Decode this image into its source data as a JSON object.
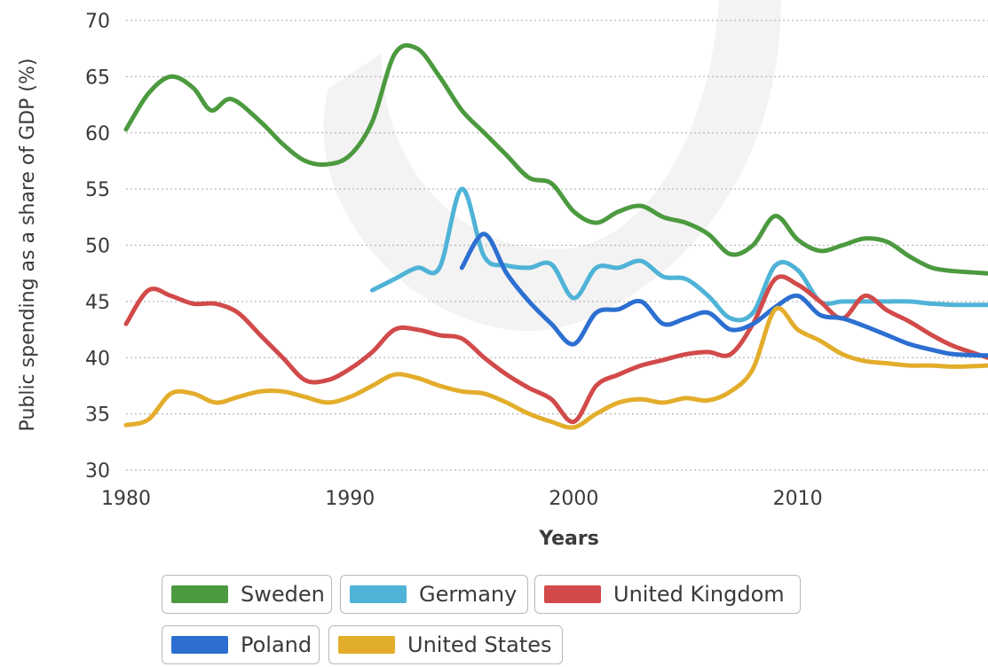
{
  "chart_data": {
    "type": "line",
    "xlabel": "Years",
    "ylabel": "Public spending as a share of GDP (%)",
    "xlim": [
      1980,
      2018.5
    ],
    "ylim": [
      30,
      70
    ],
    "xticks": [
      1980,
      1990,
      2000,
      2010
    ],
    "yticks": [
      30,
      35,
      40,
      45,
      50,
      55,
      60,
      65,
      70
    ],
    "grid": "horizontal-dotted",
    "legend": "bottom",
    "series": [
      {
        "name": "Sweden",
        "color": "#4c9a3f",
        "points": [
          [
            1980,
            60.3
          ],
          [
            1981,
            63.5
          ],
          [
            1982,
            65
          ],
          [
            1983,
            64
          ],
          [
            1983.8,
            62
          ],
          [
            1984.7,
            63
          ],
          [
            1986,
            61
          ],
          [
            1987,
            59
          ],
          [
            1988,
            57.5
          ],
          [
            1989,
            57.2
          ],
          [
            1990,
            58
          ],
          [
            1991,
            61
          ],
          [
            1992,
            67
          ],
          [
            1993,
            67.5
          ],
          [
            1994,
            65
          ],
          [
            1995,
            62
          ],
          [
            1996,
            60
          ],
          [
            1997,
            58
          ],
          [
            1998,
            56
          ],
          [
            1999,
            55.5
          ],
          [
            2000,
            53
          ],
          [
            2001,
            52
          ],
          [
            2002,
            53
          ],
          [
            2003,
            53.5
          ],
          [
            2004,
            52.5
          ],
          [
            2005,
            52
          ],
          [
            2006,
            51
          ],
          [
            2007,
            49.2
          ],
          [
            2008,
            50
          ],
          [
            2009,
            52.6
          ],
          [
            2010,
            50.5
          ],
          [
            2011,
            49.5
          ],
          [
            2012,
            50
          ],
          [
            2013,
            50.6
          ],
          [
            2014,
            50.3
          ],
          [
            2015,
            49
          ],
          [
            2016,
            48
          ],
          [
            2017,
            47.7
          ],
          [
            2018.5,
            47.5
          ]
        ]
      },
      {
        "name": "Germany",
        "color": "#4fb3d7",
        "points": [
          [
            1991,
            46
          ],
          [
            1992,
            47
          ],
          [
            1993,
            48
          ],
          [
            1994,
            48
          ],
          [
            1995,
            55
          ],
          [
            1996,
            49
          ],
          [
            1997,
            48.2
          ],
          [
            1998,
            48
          ],
          [
            1999,
            48.3
          ],
          [
            2000,
            45.3
          ],
          [
            2001,
            48
          ],
          [
            2002,
            48
          ],
          [
            2003,
            48.6
          ],
          [
            2004,
            47.2
          ],
          [
            2005,
            47
          ],
          [
            2006,
            45.5
          ],
          [
            2007,
            43.5
          ],
          [
            2008,
            44
          ],
          [
            2009,
            48.2
          ],
          [
            2010,
            47.8
          ],
          [
            2011,
            45
          ],
          [
            2012,
            45
          ],
          [
            2013,
            45
          ],
          [
            2014,
            45
          ],
          [
            2015,
            45
          ],
          [
            2016,
            44.8
          ],
          [
            2017,
            44.7
          ],
          [
            2018.5,
            44.7
          ]
        ]
      },
      {
        "name": "United Kingdom",
        "color": "#d24a4a",
        "points": [
          [
            1980,
            43
          ],
          [
            1981,
            46
          ],
          [
            1982,
            45.5
          ],
          [
            1983,
            44.8
          ],
          [
            1984,
            44.8
          ],
          [
            1985,
            44
          ],
          [
            1986,
            42
          ],
          [
            1987,
            40
          ],
          [
            1988,
            38
          ],
          [
            1989,
            38
          ],
          [
            1990,
            39
          ],
          [
            1991,
            40.5
          ],
          [
            1992,
            42.5
          ],
          [
            1993,
            42.5
          ],
          [
            1994,
            42
          ],
          [
            1995,
            41.7
          ],
          [
            1996,
            40
          ],
          [
            1997,
            38.5
          ],
          [
            1998,
            37.3
          ],
          [
            1999,
            36.3
          ],
          [
            2000,
            34.3
          ],
          [
            2001,
            37.5
          ],
          [
            2002,
            38.5
          ],
          [
            2003,
            39.3
          ],
          [
            2004,
            39.8
          ],
          [
            2005,
            40.3
          ],
          [
            2006,
            40.5
          ],
          [
            2007,
            40.3
          ],
          [
            2008,
            43
          ],
          [
            2009,
            47
          ],
          [
            2010,
            46.5
          ],
          [
            2011,
            45
          ],
          [
            2012,
            43.5
          ],
          [
            2013,
            45.5
          ],
          [
            2014,
            44.2
          ],
          [
            2015,
            43.2
          ],
          [
            2016,
            42
          ],
          [
            2017,
            41
          ],
          [
            2018.5,
            40
          ]
        ]
      },
      {
        "name": "Poland",
        "color": "#2c6fd1",
        "points": [
          [
            1995,
            48
          ],
          [
            1996,
            51
          ],
          [
            1997,
            47.5
          ],
          [
            1998,
            45
          ],
          [
            1999,
            43
          ],
          [
            2000,
            41.2
          ],
          [
            2001,
            44
          ],
          [
            2002,
            44.3
          ],
          [
            2003,
            45
          ],
          [
            2004,
            43
          ],
          [
            2005,
            43.5
          ],
          [
            2006,
            44
          ],
          [
            2007,
            42.5
          ],
          [
            2008,
            43
          ],
          [
            2009,
            44.5
          ],
          [
            2010,
            45.5
          ],
          [
            2011,
            43.8
          ],
          [
            2012,
            43.5
          ],
          [
            2013,
            42.8
          ],
          [
            2014,
            42
          ],
          [
            2015,
            41.2
          ],
          [
            2016,
            40.7
          ],
          [
            2017,
            40.3
          ],
          [
            2018.5,
            40.2
          ]
        ]
      },
      {
        "name": "United States",
        "color": "#e3ad2c",
        "points": [
          [
            1980,
            34
          ],
          [
            1981,
            34.5
          ],
          [
            1982,
            36.8
          ],
          [
            1983,
            36.8
          ],
          [
            1984,
            36
          ],
          [
            1985,
            36.5
          ],
          [
            1986,
            37
          ],
          [
            1987,
            37
          ],
          [
            1988,
            36.5
          ],
          [
            1989,
            36
          ],
          [
            1990,
            36.5
          ],
          [
            1991,
            37.5
          ],
          [
            1992,
            38.5
          ],
          [
            1993,
            38.2
          ],
          [
            1994,
            37.5
          ],
          [
            1995,
            37
          ],
          [
            1996,
            36.8
          ],
          [
            1997,
            36
          ],
          [
            1998,
            35
          ],
          [
            1999,
            34.3
          ],
          [
            2000,
            33.8
          ],
          [
            2001,
            35
          ],
          [
            2002,
            36
          ],
          [
            2003,
            36.3
          ],
          [
            2004,
            36
          ],
          [
            2005,
            36.4
          ],
          [
            2006,
            36.2
          ],
          [
            2007,
            37
          ],
          [
            2008,
            39
          ],
          [
            2009,
            44.3
          ],
          [
            2010,
            42.5
          ],
          [
            2011,
            41.5
          ],
          [
            2012,
            40.3
          ],
          [
            2013,
            39.7
          ],
          [
            2014,
            39.5
          ],
          [
            2015,
            39.3
          ],
          [
            2016,
            39.3
          ],
          [
            2017,
            39.2
          ],
          [
            2018.5,
            39.3
          ]
        ]
      }
    ]
  }
}
